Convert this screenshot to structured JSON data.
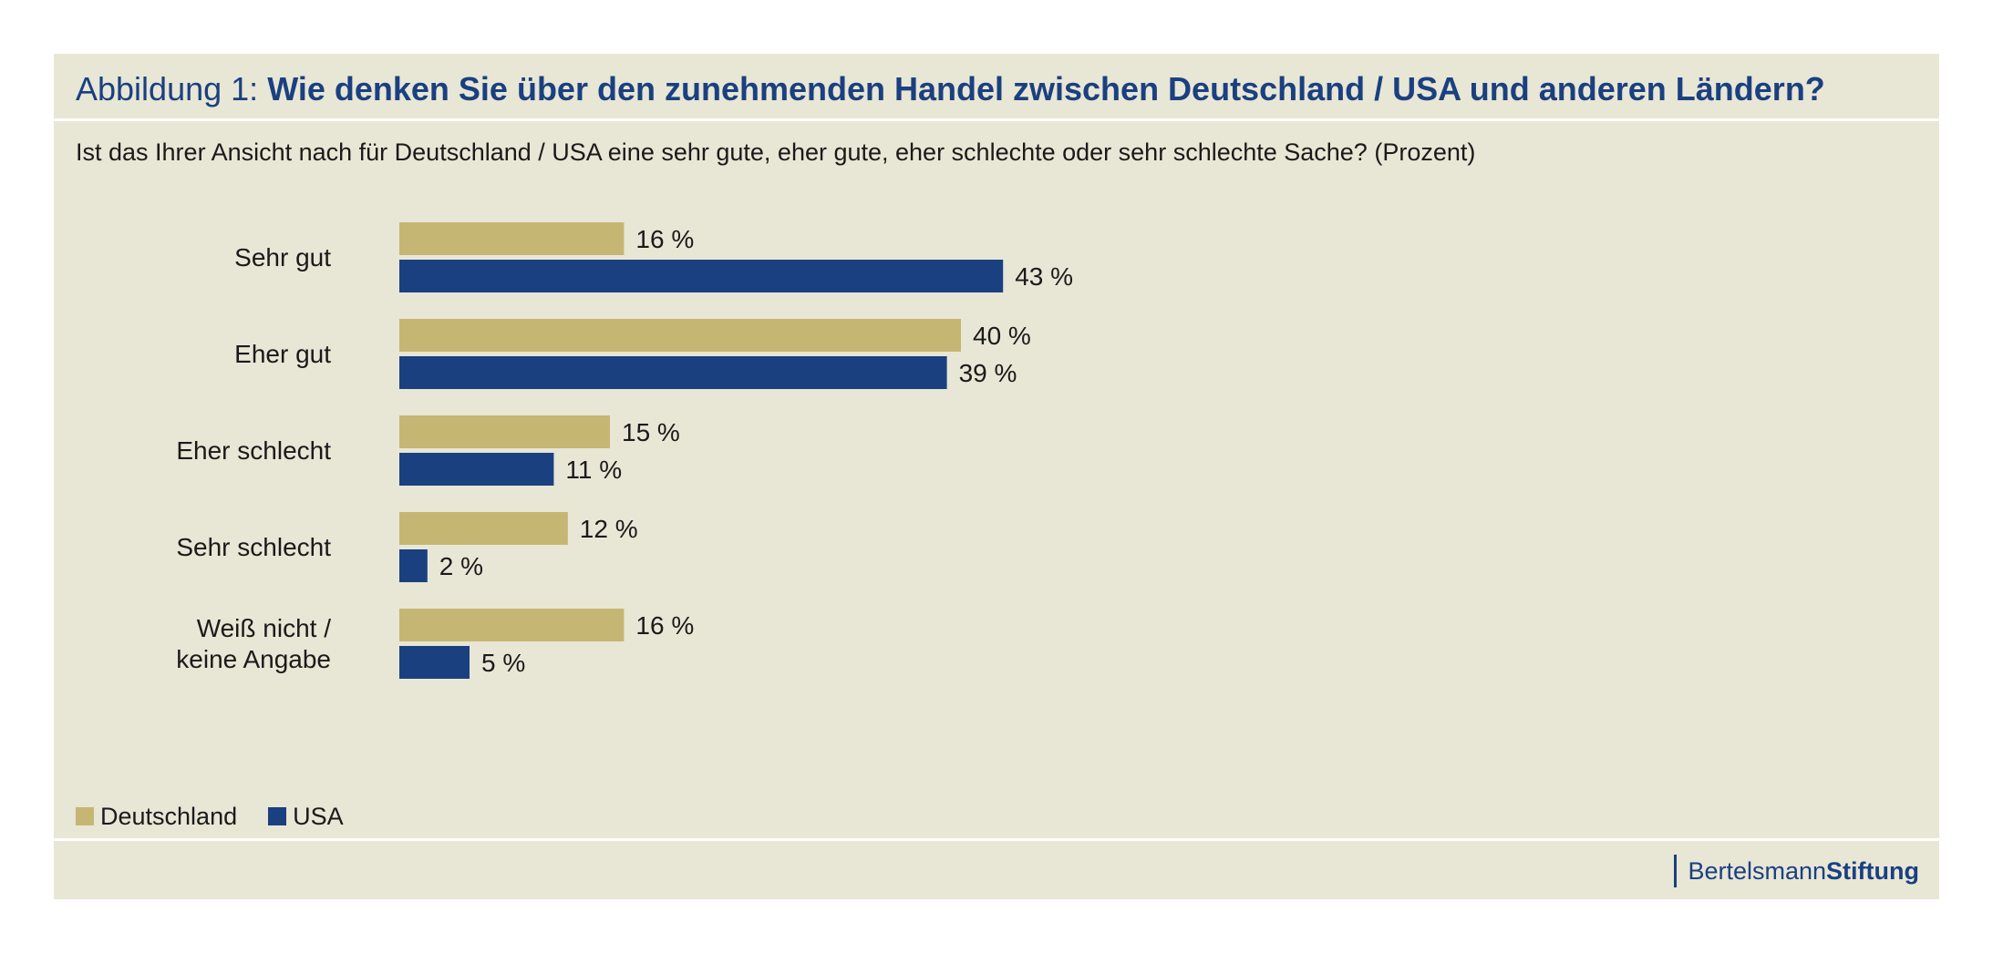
{
  "header": {
    "prefix": "Abbildung 1:",
    "title": "Wie denken Sie über den zunehmenden Handel zwischen Deutschland / USA und anderen Ländern?"
  },
  "subtitle": "Ist das Ihrer Ansicht nach für Deutschland / USA eine sehr gute, eher gute, eher schlechte oder sehr schlechte Sache? (Prozent)",
  "colors": {
    "panel_background": "#e8e6d5",
    "deutschland": "#c6b673",
    "usa": "#1a4080",
    "title": "#1a4080"
  },
  "legend": {
    "items": [
      {
        "label": "Deutschland",
        "color": "#c6b673"
      },
      {
        "label": "USA",
        "color": "#1a4080"
      }
    ]
  },
  "logo": {
    "regular": "Bertelsmann",
    "bold": "Stiftung"
  },
  "chart_data": {
    "type": "bar",
    "orientation": "horizontal",
    "categories": [
      "Sehr gut",
      "Eher gut",
      "Eher schlecht",
      "Sehr schlecht",
      "Weiß nicht / keine Angabe"
    ],
    "category_lines": [
      [
        "Sehr gut"
      ],
      [
        "Eher gut"
      ],
      [
        "Eher schlecht"
      ],
      [
        "Sehr schlecht"
      ],
      [
        "Weiß nicht /",
        "keine Angabe"
      ]
    ],
    "series": [
      {
        "name": "Deutschland",
        "color": "#c6b673",
        "values": [
          16,
          40,
          15,
          12,
          16
        ]
      },
      {
        "name": "USA",
        "color": "#1a4080",
        "values": [
          43,
          39,
          11,
          2,
          5
        ]
      }
    ],
    "value_suffix": " %",
    "xlim": [
      0,
      100
    ],
    "grid": false,
    "legend_position": "bottom-left"
  }
}
